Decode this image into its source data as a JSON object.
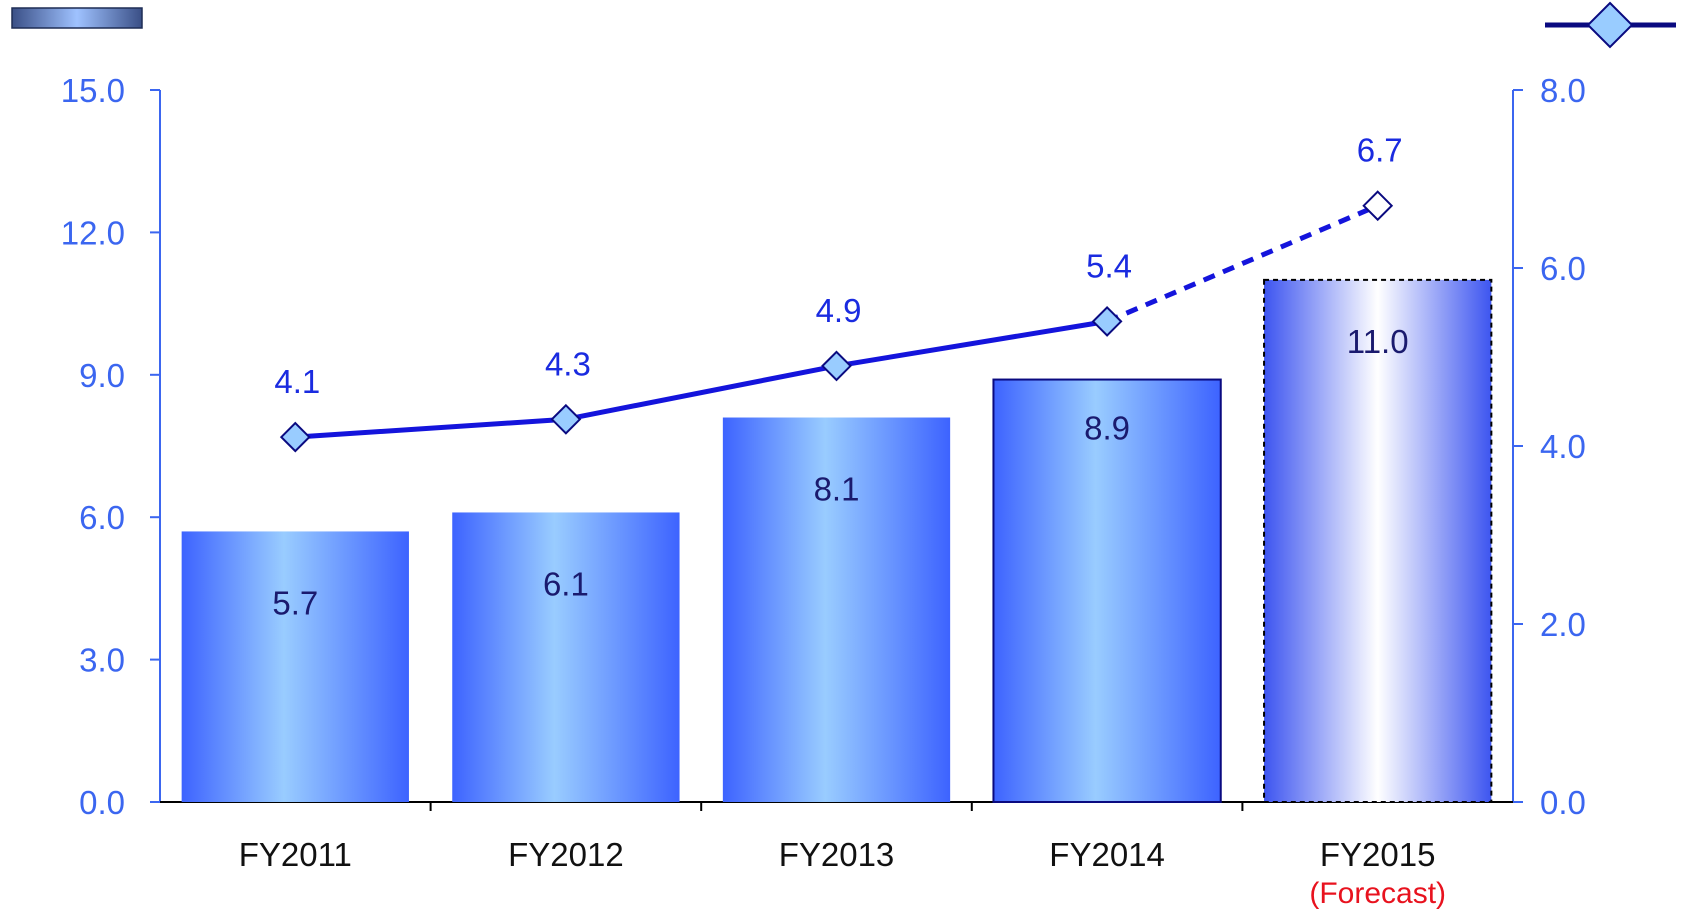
{
  "chart_data": {
    "type": "bar",
    "categories": [
      "FY2011",
      "FY2012",
      "FY2013",
      "FY2014",
      "FY2015"
    ],
    "category_notes": [
      "",
      "",
      "",
      "",
      "(Forecast)"
    ],
    "series": [
      {
        "type": "bar",
        "axis": "left",
        "values": [
          5.7,
          6.1,
          8.1,
          8.9,
          11.0
        ],
        "forecast_from_index": 4
      },
      {
        "type": "line",
        "axis": "right",
        "values": [
          4.1,
          4.3,
          4.9,
          5.4,
          6.7
        ],
        "forecast_from_index": 4
      }
    ],
    "y_left": {
      "lim": [
        0,
        15
      ],
      "ticks": [
        "0.0",
        "3.0",
        "6.0",
        "9.0",
        "12.0",
        "15.0"
      ]
    },
    "y_right": {
      "lim": [
        0,
        8
      ],
      "ticks": [
        "0.0",
        "2.0",
        "4.0",
        "6.0",
        "8.0"
      ]
    },
    "grid": false,
    "legend": "top (bar swatch at top-left, line-with-diamond swatch at top-right)",
    "colors": {
      "axis": "#3b66f0",
      "bar_edge": "#3d63ff",
      "bar_center": "#99ccff",
      "line": "#1414dc",
      "marker_fill": "#99ccff",
      "marker_edge": "#0a0a80",
      "forecast_note": "#e8121e"
    }
  }
}
